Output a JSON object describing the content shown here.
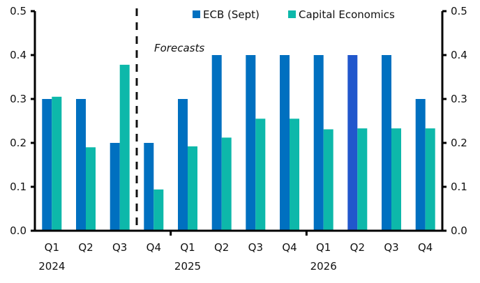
{
  "chart_data": {
    "type": "bar",
    "title": "",
    "xlabel": "",
    "ylabel": "",
    "ylim": [
      0,
      0.5
    ],
    "yticks": [
      "0.0",
      "0.1",
      "0.2",
      "0.3",
      "0.4",
      "0.5"
    ],
    "grid": false,
    "legend_position": "top-right",
    "categories": [
      "Q1",
      "Q2",
      "Q3",
      "Q4",
      "Q1",
      "Q2",
      "Q3",
      "Q4",
      "Q1",
      "Q2",
      "Q3",
      "Q4"
    ],
    "year_labels": [
      {
        "label": "2024",
        "category_index": 0
      },
      {
        "label": "2025",
        "category_index": 4
      },
      {
        "label": "2026",
        "category_index": 8
      }
    ],
    "series": [
      {
        "name": "ECB (Sept)",
        "color": "#0070C0",
        "values": [
          0.3,
          0.3,
          0.2,
          0.2,
          0.3,
          0.4,
          0.4,
          0.4,
          0.4,
          0.4,
          0.4,
          0.3
        ],
        "highlight": {
          "index": 9,
          "color": "#2157CC"
        }
      },
      {
        "name": "Capital Economics",
        "color": "#0DB8AA",
        "values": [
          0.305,
          0.19,
          0.378,
          0.094,
          0.192,
          0.212,
          0.255,
          0.255,
          0.231,
          0.233,
          0.233,
          0.233
        ]
      }
    ],
    "annotations": [
      {
        "text": "Forecasts",
        "style": "italic",
        "divider_after_index": 2
      }
    ]
  }
}
